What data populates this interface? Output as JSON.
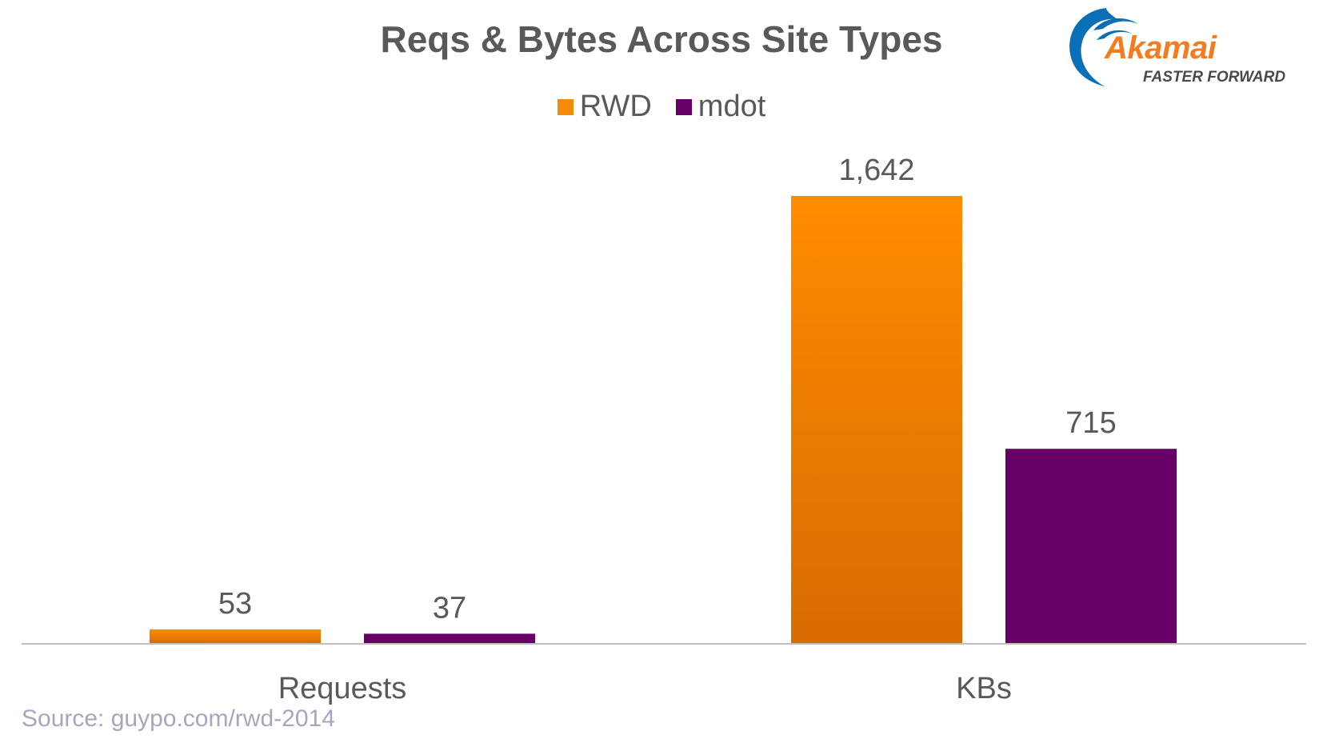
{
  "chart_data": {
    "type": "bar",
    "title": "Reqs & Bytes Across Site Types",
    "categories": [
      "Requests",
      "KBs"
    ],
    "series": [
      {
        "name": "RWD",
        "values": [
          53,
          1642
        ],
        "labels": [
          "53",
          "1,642"
        ],
        "color": "#F58A0A",
        "color_end": "#DA6A02"
      },
      {
        "name": "mdot",
        "values": [
          37,
          715
        ],
        "labels": [
          "37",
          "715"
        ],
        "color": "#660066"
      }
    ],
    "legend": "top",
    "grid": false,
    "axes_visible": false
  },
  "logo": {
    "wordmark": "Akamai",
    "tagline": "FASTER FORWARD",
    "colors": {
      "word": "#F47C20",
      "arc": "#0A6FB6",
      "tagline": "#4a4a4a"
    }
  },
  "source": "Source: guypo.com/rwd-2014"
}
